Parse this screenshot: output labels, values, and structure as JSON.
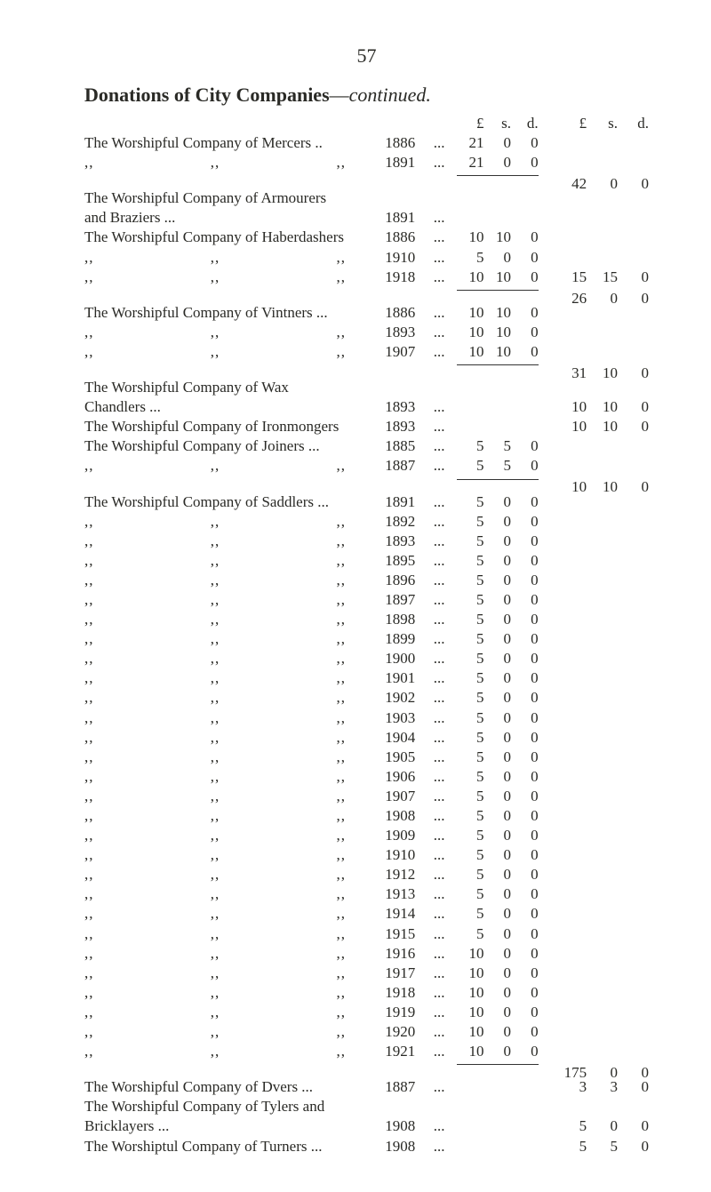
{
  "page_number": "57",
  "heading_bold": "Donations of City Companies",
  "heading_em_dash": "—",
  "heading_ital": "continued.",
  "col_hdr": {
    "L": "£",
    "s": "s.",
    "d": "d."
  },
  "dots": "...",
  "ditto_d": ",,",
  "ditto_s": ",,",
  "groups": [
    {
      "rows": [
        {
          "desc": "The Worshipful Company of Mercers",
          "tail": "..",
          "year": "1886",
          "L": "21",
          "s": "0",
          "d": "0"
        },
        {
          "desc": "ditto3",
          "year": "1891",
          "L": "21",
          "s": "0",
          "d": "0"
        }
      ],
      "total": {
        "L": "42",
        "s": "0",
        "d": "0"
      }
    },
    {
      "rows": [
        {
          "desc": "The Worshipful Company of Armourers",
          "noamounts": true
        },
        {
          "desc": "and Braziers ...",
          "indent": true,
          "year": "1891"
        },
        {
          "total_inline": {
            "L": "15",
            "s": "15",
            "d": "0"
          }
        },
        {
          "desc": "The Worshipful Company of Haberdashers",
          "year": "1886",
          "L": "10",
          "s": "10",
          "d": "0"
        },
        {
          "desc": "ditto3",
          "year": "1910",
          "L": "5",
          "s": "0",
          "d": "0"
        },
        {
          "desc": "ditto3",
          "year": "1918",
          "L": "10",
          "s": "10",
          "d": "0"
        }
      ],
      "total": {
        "L": "26",
        "s": "0",
        "d": "0"
      }
    },
    {
      "rows": [
        {
          "desc": "The Worshipful Company of Vintners",
          "tail": "...",
          "year": "1886",
          "L": "10",
          "s": "10",
          "d": "0"
        },
        {
          "desc": "ditto3",
          "year": "1893",
          "L": "10",
          "s": "10",
          "d": "0"
        },
        {
          "desc": "ditto3",
          "year": "1907",
          "L": "10",
          "s": "10",
          "d": "0"
        }
      ],
      "total": {
        "L": "31",
        "s": "10",
        "d": "0"
      }
    },
    {
      "rows": [
        {
          "desc": "The Worshipful Company of Wax",
          "noamounts": true
        },
        {
          "desc": "Chandlers      ...",
          "indent": true,
          "year": "1893",
          "total_inline": {
            "L": "10",
            "s": "10",
            "d": "0"
          }
        },
        {
          "desc": "The Worshipful Company of Ironmongers",
          "year": "1893",
          "total_inline": {
            "L": "10",
            "s": "10",
            "d": "0"
          }
        },
        {
          "desc": "The Worshipful Company of Joiners",
          "tail": "...",
          "year": "1885",
          "L": "5",
          "s": "5",
          "d": "0"
        },
        {
          "desc": "ditto3",
          "year": "1887",
          "L": "5",
          "s": "5",
          "d": "0"
        }
      ],
      "total": {
        "L": "10",
        "s": "10",
        "d": "0"
      }
    },
    {
      "rows": [
        {
          "desc": "The Worshipful Company of Saddlers",
          "tail": "...",
          "year": "1891",
          "L": "5",
          "s": "0",
          "d": "0"
        },
        {
          "desc": "ditto3",
          "year": "1892",
          "L": "5",
          "s": "0",
          "d": "0"
        },
        {
          "desc": "ditto3",
          "year": "1893",
          "L": "5",
          "s": "0",
          "d": "0"
        },
        {
          "desc": "ditto3",
          "year": "1895",
          "L": "5",
          "s": "0",
          "d": "0"
        },
        {
          "desc": "ditto3",
          "year": "1896",
          "L": "5",
          "s": "0",
          "d": "0"
        },
        {
          "desc": "ditto3",
          "year": "1897",
          "L": "5",
          "s": "0",
          "d": "0"
        },
        {
          "desc": "ditto3",
          "year": "1898",
          "L": "5",
          "s": "0",
          "d": "0"
        },
        {
          "desc": "ditto3",
          "year": "1899",
          "L": "5",
          "s": "0",
          "d": "0"
        },
        {
          "desc": "ditto3",
          "year": "1900",
          "L": "5",
          "s": "0",
          "d": "0"
        },
        {
          "desc": "ditto3",
          "year": "1901",
          "L": "5",
          "s": "0",
          "d": "0"
        },
        {
          "desc": "ditto3",
          "year": "1902",
          "L": "5",
          "s": "0",
          "d": "0"
        },
        {
          "desc": "ditto3",
          "year": "1903",
          "L": "5",
          "s": "0",
          "d": "0"
        },
        {
          "desc": "ditto3",
          "year": "1904",
          "L": "5",
          "s": "0",
          "d": "0"
        },
        {
          "desc": "ditto3",
          "year": "1905",
          "L": "5",
          "s": "0",
          "d": "0"
        },
        {
          "desc": "ditto3",
          "year": "1906",
          "L": "5",
          "s": "0",
          "d": "0"
        },
        {
          "desc": "ditto3",
          "year": "1907",
          "L": "5",
          "s": "0",
          "d": "0"
        },
        {
          "desc": "ditto3",
          "year": "1908",
          "L": "5",
          "s": "0",
          "d": "0"
        },
        {
          "desc": "ditto3",
          "year": "1909",
          "L": "5",
          "s": "0",
          "d": "0"
        },
        {
          "desc": "ditto3",
          "year": "1910",
          "L": "5",
          "s": "0",
          "d": "0"
        },
        {
          "desc": "ditto3",
          "year": "1912",
          "L": "5",
          "s": "0",
          "d": "0"
        },
        {
          "desc": "ditto3",
          "year": "1913",
          "L": "5",
          "s": "0",
          "d": "0"
        },
        {
          "desc": "ditto3",
          "year": "1914",
          "L": "5",
          "s": "0",
          "d": "0"
        },
        {
          "desc": "ditto3",
          "year": "1915",
          "L": "5",
          "s": "0",
          "d": "0"
        },
        {
          "desc": "ditto3",
          "year": "1916",
          "L": "10",
          "s": "0",
          "d": "0"
        },
        {
          "desc": "ditto3",
          "year": "1917",
          "L": "10",
          "s": "0",
          "d": "0"
        },
        {
          "desc": "ditto3",
          "year": "1918",
          "L": "10",
          "s": "0",
          "d": "0"
        },
        {
          "desc": "ditto3",
          "year": "1919",
          "L": "10",
          "s": "0",
          "d": "0"
        },
        {
          "desc": "ditto3",
          "year": "1920",
          "L": "10",
          "s": "0",
          "d": "0"
        },
        {
          "desc": "ditto3",
          "year": "1921",
          "L": "10",
          "s": "0",
          "d": "0"
        }
      ],
      "total": {
        "L": "175",
        "s": "0",
        "d": "0"
      }
    },
    {
      "rows": [
        {
          "desc": "The Worshipful Company of Dvers",
          "tail": "...",
          "year": "1887",
          "total_inline": {
            "L": "3",
            "s": "3",
            "d": "0"
          }
        },
        {
          "desc": "The Worshipful Company of Tylers and",
          "noamounts": true
        },
        {
          "desc": "Bricklayers     ...",
          "indent": true,
          "year": "1908",
          "total_inline": {
            "L": "5",
            "s": "0",
            "d": "0"
          }
        },
        {
          "desc": "The Worshiptul Company of Turners",
          "tail": "...",
          "year": "1908",
          "total_inline": {
            "L": "5",
            "s": "5",
            "d": "0"
          }
        }
      ]
    }
  ]
}
